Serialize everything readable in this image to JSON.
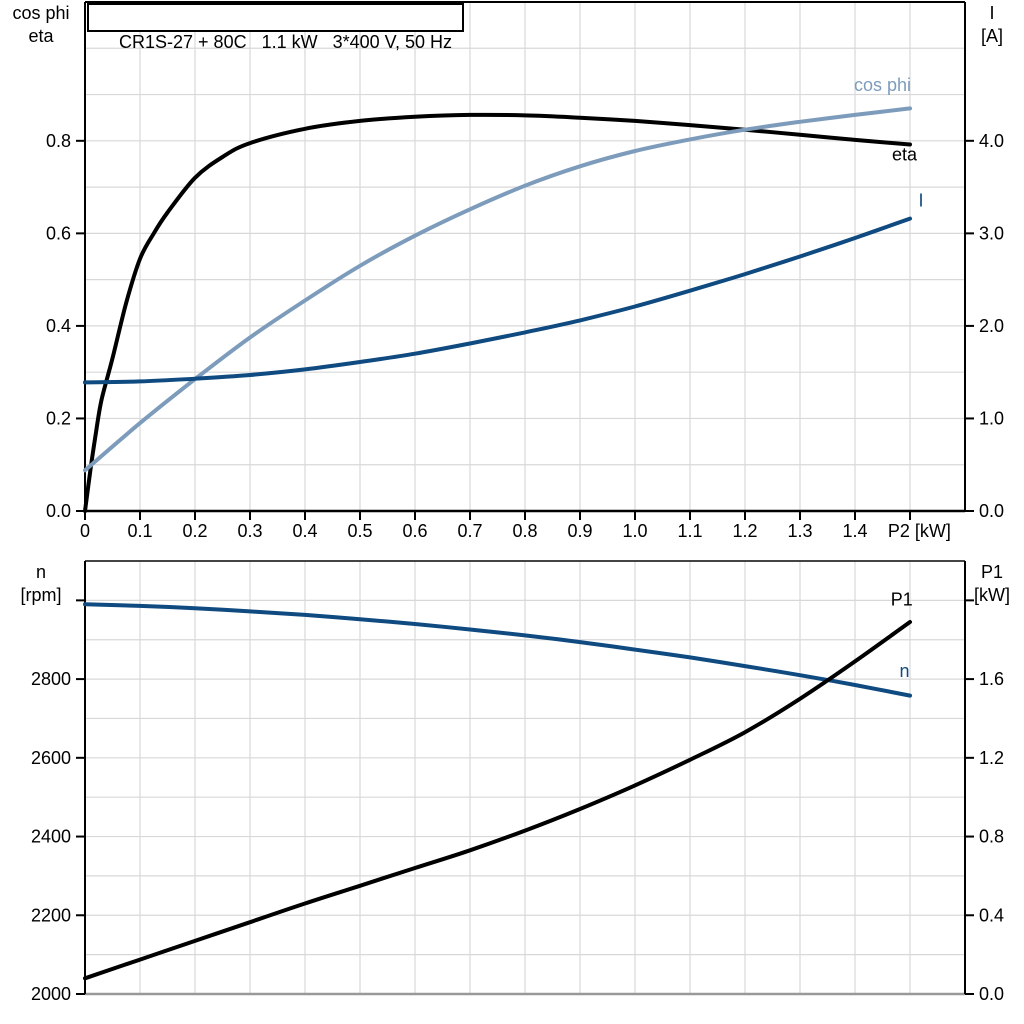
{
  "colors": {
    "grid": "#d8d8d8",
    "black": "#000000",
    "light_blue": "#7d9cbc",
    "dark_blue": "#0f4a80",
    "frame_bottom_gray": "#999999",
    "frame_top_dark": "#444444"
  },
  "chart_data": [
    {
      "id": "motor-electrical",
      "type": "line",
      "title": "CR1S-27 + 80C   1.1 kW   3*400 V, 50 Hz",
      "x_axis": {
        "min": 0,
        "max": 1.6,
        "grid_step": 0.1,
        "unit_label": "P2 [kW]",
        "unit_label_v": 1.517,
        "ticks": [
          {
            "v": 0.0,
            "label": "0"
          },
          {
            "v": 0.1,
            "label": "0.1"
          },
          {
            "v": 0.2,
            "label": "0.2"
          },
          {
            "v": 0.3,
            "label": "0.3"
          },
          {
            "v": 0.4,
            "label": "0.4"
          },
          {
            "v": 0.5,
            "label": "0.5"
          },
          {
            "v": 0.6,
            "label": "0.6"
          },
          {
            "v": 0.7,
            "label": "0.7"
          },
          {
            "v": 0.8,
            "label": "0.8"
          },
          {
            "v": 0.9,
            "label": "0.9"
          },
          {
            "v": 1.0,
            "label": "1.0"
          },
          {
            "v": 1.1,
            "label": "1.1"
          },
          {
            "v": 1.2,
            "label": "1.2"
          },
          {
            "v": 1.3,
            "label": "1.3"
          },
          {
            "v": 1.4,
            "label": "1.4"
          },
          {
            "v": 1.5,
            "label": ""
          }
        ]
      },
      "left_axis": {
        "title_lines": [
          "cos phi",
          "eta"
        ],
        "min": 0,
        "max": 1.1,
        "grid_step": 0.1,
        "ticks": [
          {
            "v": 0.0,
            "label": "0.0"
          },
          {
            "v": 0.2,
            "label": "0.2"
          },
          {
            "v": 0.4,
            "label": "0.4"
          },
          {
            "v": 0.6,
            "label": "0.6"
          },
          {
            "v": 0.8,
            "label": "0.8"
          }
        ]
      },
      "right_axis": {
        "title_lines": [
          "I",
          "[A]"
        ],
        "min": 0,
        "max": 5.5,
        "grid_step": 0.5,
        "ticks": [
          {
            "v": 0.0,
            "label": "0.0"
          },
          {
            "v": 1.0,
            "label": "1.0"
          },
          {
            "v": 2.0,
            "label": "2.0"
          },
          {
            "v": 3.0,
            "label": "3.0"
          },
          {
            "v": 4.0,
            "label": "4.0"
          }
        ]
      },
      "series": [
        {
          "id": "eta",
          "axis": "left",
          "color": "#000000",
          "label": {
            "text": "eta",
            "x": 1.49,
            "y": 0.757
          },
          "x": [
            0,
            0.01,
            0.02,
            0.03,
            0.05,
            0.075,
            0.1,
            0.125,
            0.15,
            0.2,
            0.25,
            0.3,
            0.4,
            0.5,
            0.6,
            0.7,
            0.8,
            0.9,
            1.0,
            1.1,
            1.2,
            1.3,
            1.4,
            1.5
          ],
          "y": [
            0,
            0.09,
            0.17,
            0.24,
            0.33,
            0.45,
            0.545,
            0.6,
            0.645,
            0.72,
            0.765,
            0.795,
            0.826,
            0.843,
            0.852,
            0.856,
            0.855,
            0.85,
            0.843,
            0.834,
            0.824,
            0.813,
            0.802,
            0.792
          ]
        },
        {
          "id": "cos-phi",
          "axis": "left",
          "color": "#7d9cbc",
          "label": {
            "text": "cos phi",
            "x": 1.45,
            "y": 0.908
          },
          "x": [
            0,
            0.1,
            0.2,
            0.3,
            0.4,
            0.5,
            0.6,
            0.7,
            0.8,
            0.9,
            1.0,
            1.1,
            1.2,
            1.3,
            1.4,
            1.5
          ],
          "y": [
            0.088,
            0.19,
            0.285,
            0.375,
            0.455,
            0.53,
            0.595,
            0.652,
            0.703,
            0.745,
            0.778,
            0.803,
            0.824,
            0.841,
            0.856,
            0.87
          ]
        },
        {
          "id": "current",
          "axis": "right",
          "color": "#0f4a80",
          "label": {
            "text": "I",
            "x": 1.52,
            "y": 3.29
          },
          "x": [
            0,
            0.1,
            0.2,
            0.3,
            0.4,
            0.5,
            0.6,
            0.7,
            0.8,
            0.9,
            1.0,
            1.1,
            1.2,
            1.3,
            1.4,
            1.5
          ],
          "y": [
            1.39,
            1.4,
            1.43,
            1.47,
            1.53,
            1.61,
            1.7,
            1.81,
            1.93,
            2.06,
            2.21,
            2.38,
            2.56,
            2.75,
            2.95,
            3.16
          ]
        }
      ]
    },
    {
      "id": "speed-power",
      "type": "line",
      "title": "",
      "x_axis": {
        "min": 0,
        "max": 1.6,
        "grid_step": 0.1,
        "ticks": []
      },
      "left_axis": {
        "title_lines": [
          "n",
          "[rpm]"
        ],
        "min": 2000,
        "max": 3100,
        "grid_step": 100,
        "ticks": [
          {
            "v": 2000,
            "label": "2000"
          },
          {
            "v": 2200,
            "label": "2200"
          },
          {
            "v": 2400,
            "label": "2400"
          },
          {
            "v": 2600,
            "label": "2600"
          },
          {
            "v": 2800,
            "label": "2800"
          },
          {
            "v": 3000,
            "label": ""
          }
        ]
      },
      "right_axis": {
        "title_lines": [
          "P1",
          "[kW]"
        ],
        "min": 0,
        "max": 2.2,
        "grid_step": 0.2,
        "ticks": [
          {
            "v": 0.0,
            "label": "0.0"
          },
          {
            "v": 0.4,
            "label": "0.4"
          },
          {
            "v": 0.8,
            "label": "0.8"
          },
          {
            "v": 1.2,
            "label": "1.2"
          },
          {
            "v": 1.6,
            "label": "1.6"
          },
          {
            "v": 2.0,
            "label": ""
          }
        ]
      },
      "series": [
        {
          "id": "speed",
          "axis": "left",
          "color": "#0f4a80",
          "label": {
            "text": "n",
            "x": 1.49,
            "y": 2805
          },
          "x": [
            0,
            0.1,
            0.2,
            0.3,
            0.4,
            0.5,
            0.6,
            0.7,
            0.8,
            0.9,
            1.0,
            1.1,
            1.2,
            1.3,
            1.4,
            1.5
          ],
          "y": [
            2990,
            2986,
            2980,
            2972,
            2963,
            2952,
            2940,
            2926,
            2911,
            2894,
            2875,
            2855,
            2833,
            2810,
            2785,
            2758
          ]
        },
        {
          "id": "input-power",
          "axis": "right",
          "color": "#000000",
          "label": {
            "text": "P1",
            "x": 1.485,
            "y": 1.975
          },
          "x": [
            0,
            0.1,
            0.2,
            0.3,
            0.4,
            0.5,
            0.6,
            0.7,
            0.8,
            0.9,
            1.0,
            1.1,
            1.2,
            1.3,
            1.4,
            1.5
          ],
          "y": [
            0.08,
            0.175,
            0.27,
            0.365,
            0.46,
            0.55,
            0.64,
            0.73,
            0.83,
            0.94,
            1.06,
            1.19,
            1.33,
            1.5,
            1.69,
            1.89
          ]
        }
      ]
    }
  ]
}
